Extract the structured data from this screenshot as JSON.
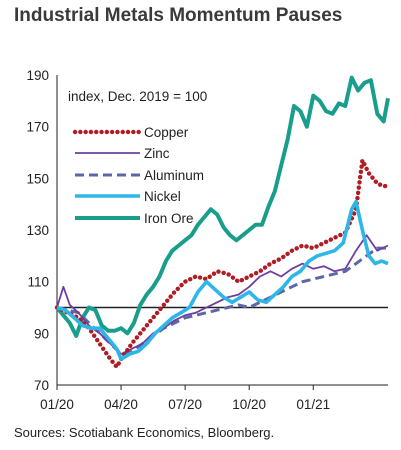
{
  "title": "Industrial Metals Momentum Pauses",
  "source": "Sources: Scotiabank Economics, Bloomberg.",
  "chart_data": {
    "type": "line",
    "unit_note": "index, Dec. 2019 = 100",
    "ylim": [
      70,
      190
    ],
    "yticks": [
      "70",
      "90",
      "110",
      "130",
      "150",
      "170",
      "190"
    ],
    "x_ticks": [
      {
        "label": "01/20",
        "t": 0
      },
      {
        "label": "04/20",
        "t": 3
      },
      {
        "label": "07/20",
        "t": 6
      },
      {
        "label": "10/20",
        "t": 9
      },
      {
        "label": "01/21",
        "t": 12
      }
    ],
    "xlim": [
      0,
      15.5
    ],
    "reference_line": 100,
    "grid": false,
    "legend_position": "upper-left",
    "series": [
      {
        "name": "Copper",
        "color": "#b01c24",
        "style": "dotted",
        "t": [
          0,
          0.5,
          1,
          1.5,
          2,
          2.5,
          2.8,
          3,
          3.5,
          4,
          4.5,
          5,
          5.5,
          6,
          6.5,
          7,
          7.5,
          8,
          8.5,
          9,
          9.5,
          10,
          10.5,
          11,
          11.5,
          12,
          12.5,
          13,
          13.5,
          14,
          14.3,
          14.6,
          15,
          15.3,
          15.5
        ],
        "values": [
          100,
          98,
          96,
          92,
          86,
          80,
          77,
          80,
          86,
          91,
          96,
          101,
          106,
          110,
          112,
          111,
          114,
          113,
          110,
          112,
          114,
          117,
          119,
          122,
          124,
          123,
          125,
          127,
          129,
          138,
          157,
          152,
          148,
          147,
          147
        ]
      },
      {
        "name": "Zinc",
        "color": "#6e3fa0",
        "style": "solid",
        "t": [
          0,
          0.3,
          0.6,
          1,
          1.5,
          2,
          2.5,
          3,
          3.5,
          4,
          4.5,
          5,
          5.5,
          6,
          6.5,
          7,
          7.5,
          8,
          8.5,
          9,
          9.5,
          10,
          10.5,
          11,
          11.5,
          12,
          12.5,
          13,
          13.5,
          14,
          14.5,
          15,
          15.5
        ],
        "values": [
          100,
          108,
          101,
          98,
          93,
          90,
          86,
          82,
          84,
          86,
          90,
          92,
          95,
          97,
          98,
          100,
          102,
          104,
          105,
          108,
          112,
          114,
          112,
          115,
          117,
          115,
          116,
          114,
          115,
          122,
          128,
          122,
          124
        ]
      },
      {
        "name": "Aluminum",
        "color": "#5b67a6",
        "style": "dashed",
        "t": [
          0,
          0.5,
          1,
          1.5,
          2,
          2.5,
          3,
          3.5,
          4,
          4.5,
          5,
          5.5,
          6,
          6.5,
          7,
          7.5,
          8,
          8.5,
          9,
          9.5,
          10,
          10.5,
          11,
          11.5,
          12,
          12.5,
          13,
          13.5,
          14,
          14.5,
          15,
          15.5
        ],
        "values": [
          100,
          99,
          98,
          94,
          90,
          86,
          82,
          83,
          86,
          89,
          92,
          94,
          96,
          97,
          98,
          99,
          100,
          101,
          100,
          102,
          104,
          106,
          108,
          110,
          111,
          112,
          113,
          114,
          117,
          120,
          123,
          123
        ]
      },
      {
        "name": "Nickel",
        "color": "#2db6e8",
        "style": "solid",
        "t": [
          0,
          0.4,
          0.8,
          1.2,
          1.6,
          2,
          2.4,
          2.8,
          3,
          3.4,
          3.8,
          4.2,
          4.6,
          5,
          5.4,
          5.8,
          6.2,
          6.6,
          7,
          7.4,
          7.8,
          8.2,
          8.6,
          9,
          9.4,
          9.8,
          10.2,
          10.6,
          11,
          11.4,
          11.8,
          12.2,
          12.6,
          13,
          13.4,
          13.8,
          14,
          14.3,
          14.6,
          14.9,
          15.2,
          15.5
        ],
        "values": [
          100,
          99,
          96,
          93,
          92,
          92,
          88,
          84,
          80,
          82,
          83,
          86,
          90,
          93,
          96,
          98,
          100,
          106,
          110,
          107,
          104,
          102,
          104,
          106,
          103,
          102,
          105,
          108,
          112,
          114,
          118,
          120,
          121,
          122,
          125,
          138,
          141,
          130,
          120,
          117,
          118,
          117
        ]
      },
      {
        "name": "Iron Ore",
        "color": "#1a9e8c",
        "style": "solid",
        "t": [
          0,
          0.3,
          0.6,
          0.9,
          1.2,
          1.5,
          1.8,
          2.1,
          2.4,
          2.7,
          3,
          3.3,
          3.6,
          3.9,
          4.2,
          4.5,
          4.8,
          5.1,
          5.4,
          5.7,
          6,
          6.3,
          6.6,
          6.9,
          7.2,
          7.5,
          7.8,
          8.1,
          8.4,
          8.7,
          9,
          9.3,
          9.6,
          9.9,
          10.2,
          10.5,
          10.8,
          11.1,
          11.4,
          11.7,
          12,
          12.3,
          12.6,
          12.9,
          13.2,
          13.5,
          13.8,
          14.1,
          14.4,
          14.7,
          15,
          15.3,
          15.5
        ],
        "values": [
          100,
          97,
          94,
          89,
          96,
          100,
          99,
          93,
          91,
          91,
          92,
          90,
          94,
          101,
          105,
          108,
          112,
          118,
          122,
          124,
          126,
          128,
          132,
          135,
          138,
          136,
          131,
          128,
          126,
          128,
          130,
          132,
          132,
          139,
          145,
          155,
          165,
          178,
          176,
          170,
          182,
          180,
          176,
          175,
          179,
          178,
          189,
          184,
          187,
          188,
          175,
          172,
          181
        ]
      }
    ]
  }
}
